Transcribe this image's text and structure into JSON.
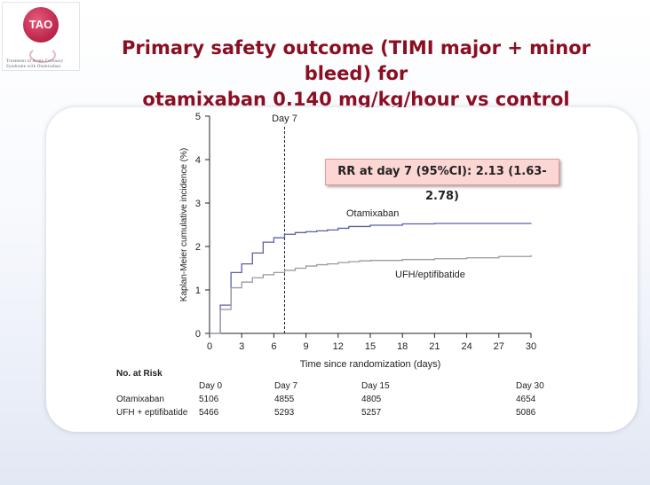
{
  "logo": {
    "text": "TAO",
    "line1": "Treatment of Acute Coronary",
    "line2": "Syndrome with Otamixaban"
  },
  "title": {
    "line1": "Primary safety outcome (TIMI major + minor bleed) for",
    "line2": "otamixaban 0.140  mg/kg/hour vs control"
  },
  "annotation": "RR at day 7 (95%CI): 2.13  (1.63-2.78)",
  "chart_data": {
    "type": "line",
    "step": true,
    "ylabel": "Kaplan-Meier cumulative incidence (%)",
    "xlabel": "Time since randomization (days)",
    "xlim": [
      0,
      30
    ],
    "ylim": [
      0,
      5
    ],
    "xticks": [
      0,
      3,
      6,
      9,
      12,
      15,
      18,
      21,
      24,
      27,
      30
    ],
    "yticks": [
      0,
      1,
      2,
      3,
      4,
      5
    ],
    "reference_line": {
      "x": 7,
      "label": "Day 7",
      "style": "dashed"
    },
    "series": [
      {
        "name": "Otamixaban",
        "color": "#5b5fa8",
        "x": [
          0,
          1,
          2,
          3,
          4,
          5,
          6,
          7,
          8,
          9,
          10,
          11,
          12,
          13,
          15,
          18,
          21,
          24,
          27,
          30
        ],
        "y": [
          0,
          0.65,
          1.4,
          1.6,
          1.85,
          2.1,
          2.2,
          2.28,
          2.32,
          2.34,
          2.36,
          2.38,
          2.42,
          2.46,
          2.49,
          2.52,
          2.53,
          2.53,
          2.53,
          2.54
        ]
      },
      {
        "name": "UFH/eptifibatide",
        "color": "#9a9aa0",
        "x": [
          0,
          1,
          2,
          3,
          4,
          5,
          6,
          7,
          8,
          9,
          10,
          11,
          12,
          13,
          14,
          15,
          18,
          21,
          24,
          27,
          30
        ],
        "y": [
          0,
          0.55,
          1.05,
          1.18,
          1.28,
          1.35,
          1.4,
          1.45,
          1.5,
          1.55,
          1.58,
          1.6,
          1.63,
          1.65,
          1.67,
          1.68,
          1.7,
          1.72,
          1.74,
          1.77,
          1.8
        ]
      }
    ]
  },
  "risk_table": {
    "title": "No. at Risk",
    "headers": [
      "Day 0",
      "Day 7",
      "Day 15",
      "Day 30"
    ],
    "rows": [
      {
        "label": "Otamixaban",
        "values": [
          "5106",
          "4855",
          "4805",
          "4654"
        ]
      },
      {
        "label": "UFH + eptifibatide",
        "values": [
          "5466",
          "5293",
          "5257",
          "5086"
        ]
      }
    ]
  }
}
